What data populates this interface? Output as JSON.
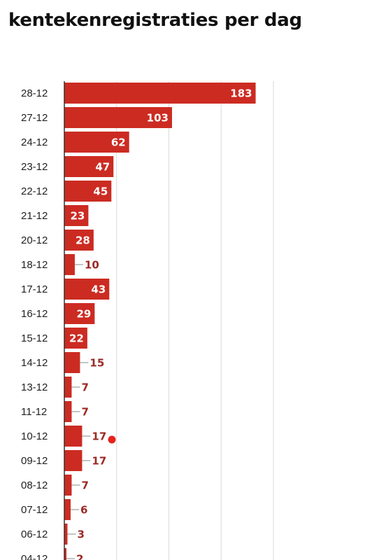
{
  "chart_data": {
    "type": "bar",
    "orientation": "horizontal",
    "title": "kentekenregistraties per dag",
    "xlabel": "",
    "ylabel": "",
    "categories": [
      "28-12",
      "27-12",
      "24-12",
      "23-12",
      "22-12",
      "21-12",
      "20-12",
      "18-12",
      "17-12",
      "16-12",
      "15-12",
      "14-12",
      "13-12",
      "11-12",
      "10-12",
      "09-12",
      "08-12",
      "07-12",
      "06-12",
      "04-12"
    ],
    "values": [
      183,
      103,
      62,
      47,
      45,
      23,
      28,
      10,
      43,
      29,
      22,
      15,
      7,
      7,
      17,
      17,
      7,
      6,
      3,
      2
    ],
    "xlim": [
      0,
      200
    ],
    "grid": true,
    "bar_color": "#cc2b22",
    "gridline_color": "#d9d9d9",
    "outside_label_color": "#9b2a24"
  },
  "annotations": {
    "cursor_dot_color": "#e8211c"
  }
}
